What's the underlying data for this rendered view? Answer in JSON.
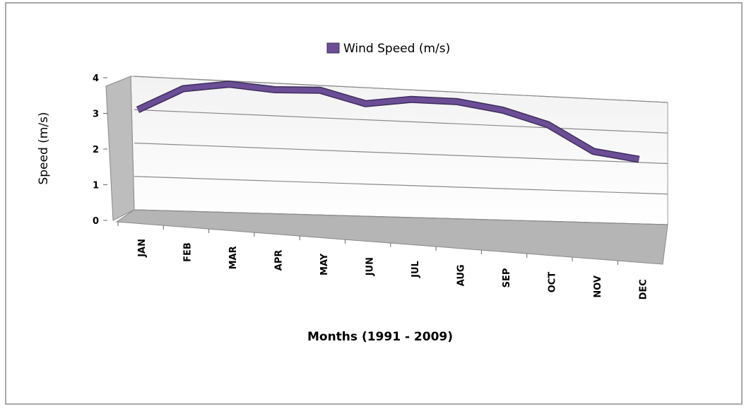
{
  "chart_data": {
    "type": "line",
    "legend": "Wind Speed (m/s)",
    "y_label": "Speed (m/s)",
    "x_label": "Months (1991 - 2009)",
    "categories": [
      "JAN",
      "FEB",
      "MAR",
      "APR",
      "MAY",
      "JUN",
      "JUL",
      "AUG",
      "SEP",
      "OCT",
      "NOV",
      "DEC"
    ],
    "series": [
      {
        "name": "Wind Speed (m/s)",
        "color": "#6b4e96",
        "values": [
          3.0,
          3.7,
          3.9,
          3.8,
          3.85,
          3.5,
          3.7,
          3.7,
          3.5,
          3.1,
          2.3,
          2.1
        ]
      }
    ],
    "ylim": [
      0,
      4
    ],
    "yticks": [
      0,
      1,
      2,
      3,
      4
    ],
    "grid": true
  }
}
